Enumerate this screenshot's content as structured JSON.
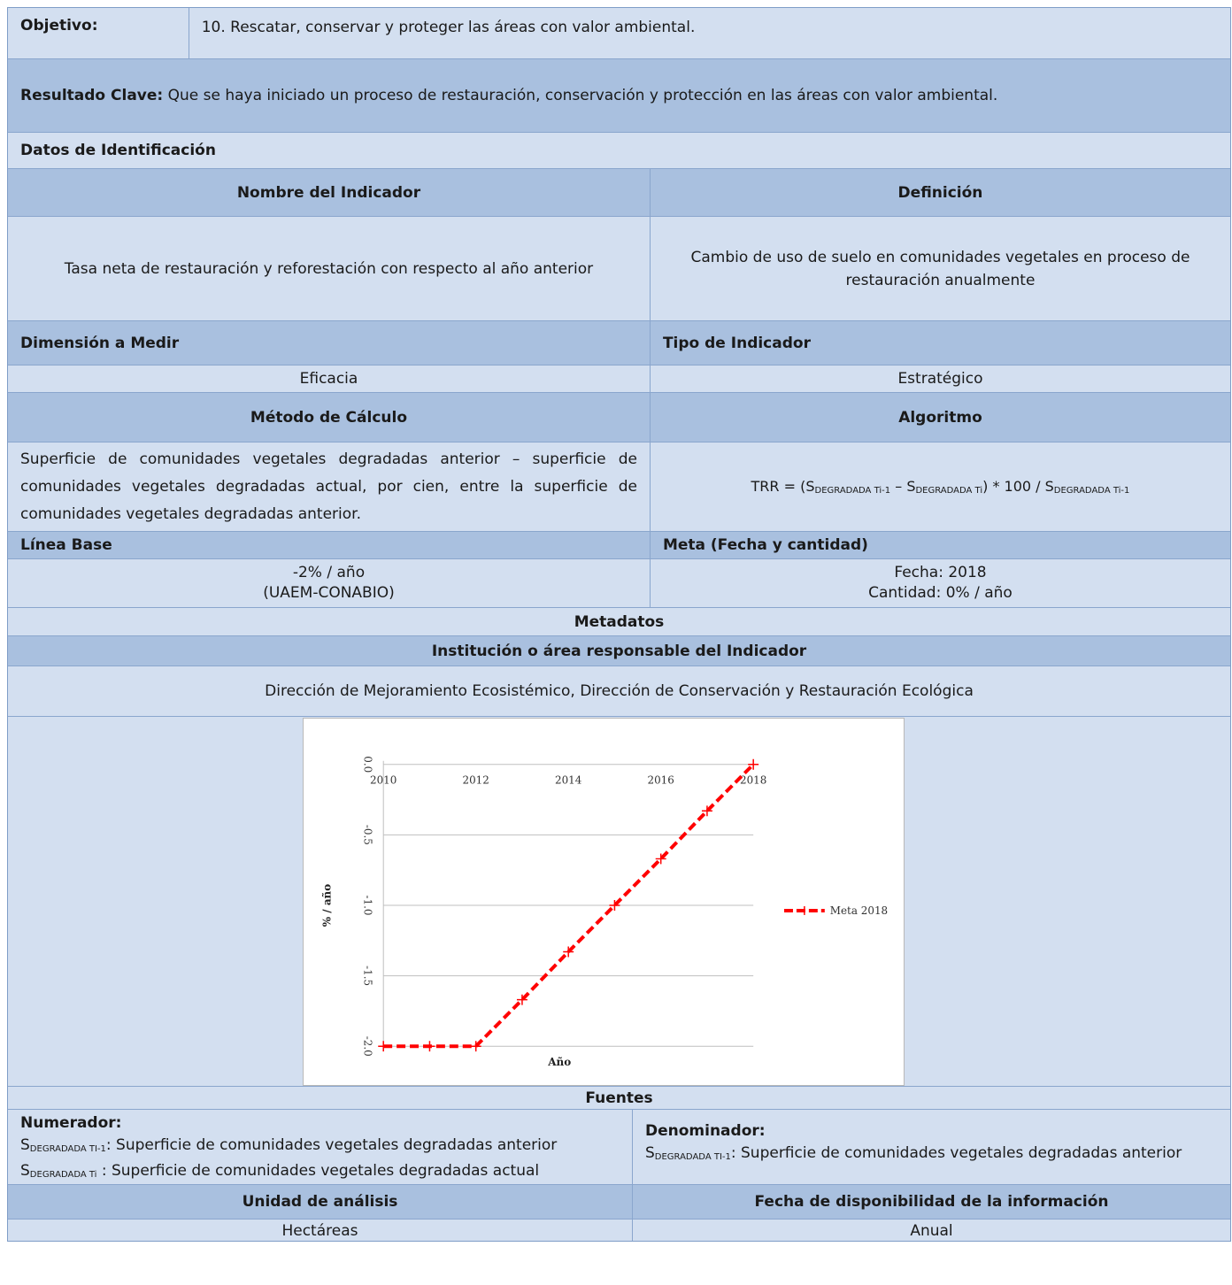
{
  "objective": {
    "label": "Objetivo:",
    "value": "10. Rescatar, conservar y proteger las áreas con valor ambiental."
  },
  "key_result": {
    "label": "Resultado Clave:",
    "value": "Que se haya iniciado un proceso de restauración, conservación y protección en las áreas con valor ambiental."
  },
  "identification": {
    "title": "Datos de Identificación"
  },
  "indicator": {
    "name_header": "Nombre del Indicador",
    "definition_header": "Definición",
    "name": "Tasa neta de restauración y reforestación con respecto al año anterior",
    "definition": "Cambio de uso de suelo en comunidades vegetales en proceso de restauración anualmente"
  },
  "dimension": {
    "header": "Dimensión a Medir",
    "value": "Eficacia"
  },
  "type": {
    "header": "Tipo de Indicador",
    "value": "Estratégico"
  },
  "method": {
    "header": "Método de Cálculo",
    "value": "Superficie de comunidades vegetales degradadas anterior – superficie de comunidades vegetales degradadas actual, por cien, entre la superficie de comunidades vegetales degradadas anterior."
  },
  "algorithm": {
    "header": "Algoritmo",
    "prefix": "TRR = (S",
    "sub1": "DEGRADADA Ti-1",
    "mid": " – S",
    "sub2": "DEGRADADA Ti",
    "mid2": ") * 100 / S",
    "sub3": "DEGRADADA Ti-1"
  },
  "baseline": {
    "header": "Línea Base",
    "line1": "-2% / año",
    "line2": "(UAEM-CONABIO)"
  },
  "goal": {
    "header": "Meta (Fecha y cantidad)",
    "line1": "Fecha: 2018",
    "line2": "Cantidad: 0% / año"
  },
  "metadata": {
    "title": "Metadatos"
  },
  "institution": {
    "header": "Institución o área responsable del Indicador",
    "value": "Dirección de Mejoramiento Ecosistémico, Dirección de Conservación y Restauración Ecológica"
  },
  "chart_data": {
    "type": "line",
    "title": "",
    "xlabel": "Año",
    "ylabel": "% / año",
    "x_ticks": [
      "2010",
      "2012",
      "2014",
      "2016",
      "2018"
    ],
    "y_ticks": [
      "0.0",
      "-0.5",
      "-1.0",
      "-1.5",
      "-2.0"
    ],
    "xlim": [
      2010,
      2018
    ],
    "ylim": [
      -2.0,
      0.0
    ],
    "grid": "horizontal",
    "legend_position": "right",
    "series": [
      {
        "name": "Meta 2018",
        "color": "#ff0000",
        "x": [
          2010,
          2011,
          2012,
          2013,
          2014,
          2015,
          2016,
          2017,
          2018
        ],
        "y": [
          -2.0,
          -2.0,
          -2.0,
          -1.67,
          -1.33,
          -1.0,
          -0.67,
          -0.33,
          0.0
        ]
      }
    ]
  },
  "sources": {
    "title": "Fuentes",
    "numerator_label": "Numerador:",
    "num_s1": "S",
    "num_sub1": "DEGRADADA TI-1",
    "num_text1": ": Superficie de comunidades vegetales degradadas anterior",
    "num_s2": "S",
    "num_sub2": "DEGRADADA Ti",
    "num_text2": " : Superficie de comunidades vegetales degradadas actual",
    "denominator_label": "Denominador:",
    "den_s1": "S",
    "den_sub1": "DEGRADADA TI-1",
    "den_text1": ": Superficie de comunidades vegetales degradadas anterior"
  },
  "analysis_unit": {
    "header": "Unidad de análisis",
    "value": "Hectáreas"
  },
  "availability": {
    "header": "Fecha de disponibilidad de la información",
    "value": "Anual"
  }
}
